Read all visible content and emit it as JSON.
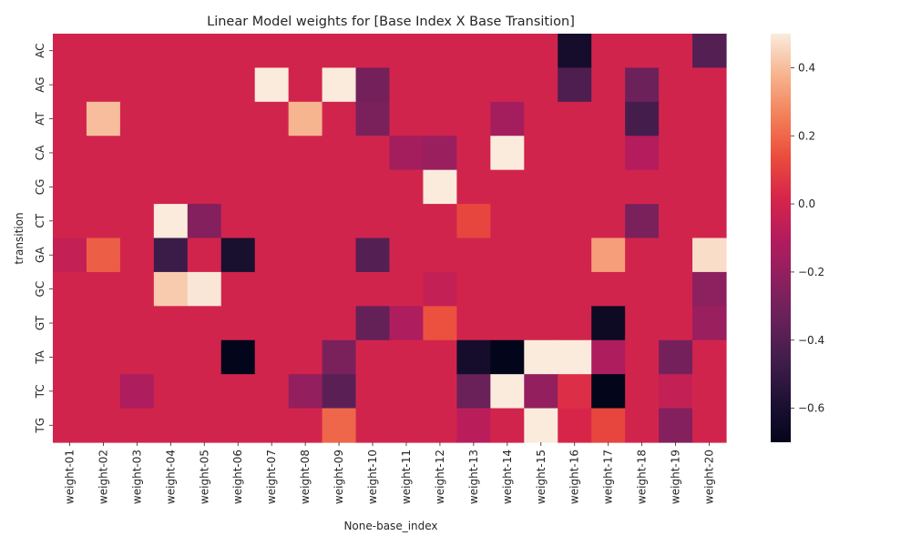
{
  "chart_data": {
    "type": "heatmap",
    "title": "Linear Model weights for [Base Index X Base Transition]",
    "xlabel": "None-base_index",
    "ylabel": "transition",
    "x_categories": [
      "weight-01",
      "weight-02",
      "weight-03",
      "weight-04",
      "weight-05",
      "weight-06",
      "weight-07",
      "weight-08",
      "weight-09",
      "weight-10",
      "weight-11",
      "weight-12",
      "weight-13",
      "weight-14",
      "weight-15",
      "weight-16",
      "weight-17",
      "weight-18",
      "weight-19",
      "weight-20"
    ],
    "y_categories": [
      "AC",
      "AG",
      "AT",
      "CA",
      "CG",
      "CT",
      "GA",
      "GC",
      "GT",
      "TA",
      "TC",
      "TG"
    ],
    "values": [
      [
        0,
        0,
        0,
        0,
        0,
        0,
        0,
        0,
        0,
        0,
        0,
        0,
        0,
        0,
        0,
        -0.62,
        0,
        0,
        0,
        -0.4
      ],
      [
        0,
        0,
        0,
        0,
        0,
        0,
        0.5,
        0,
        0.5,
        -0.3,
        0,
        0,
        0,
        0,
        0,
        -0.42,
        0,
        -0.32,
        0,
        0
      ],
      [
        0,
        0.4,
        0,
        0,
        0,
        0,
        0,
        0.38,
        0,
        -0.28,
        0,
        0,
        0,
        -0.15,
        0,
        0,
        0,
        -0.45,
        0,
        0
      ],
      [
        0,
        0,
        0,
        0,
        0,
        0,
        0,
        0,
        0,
        0,
        -0.15,
        -0.18,
        0,
        0.5,
        0,
        0,
        0,
        -0.1,
        0,
        0
      ],
      [
        0,
        0,
        0,
        0,
        0,
        0,
        0,
        0,
        0,
        0,
        0,
        0.5,
        0,
        0,
        0,
        0,
        0,
        0,
        0,
        0
      ],
      [
        0,
        0,
        0,
        0.5,
        -0.25,
        0,
        0,
        0,
        0,
        0,
        0,
        0,
        0.12,
        0,
        0,
        0,
        0,
        -0.28,
        0,
        0
      ],
      [
        -0.05,
        0.18,
        0,
        -0.48,
        0,
        -0.6,
        0,
        0,
        0,
        -0.4,
        0,
        0,
        0,
        0,
        0,
        0,
        0.33,
        0,
        0,
        0.47
      ],
      [
        0,
        0,
        0,
        0.43,
        0.49,
        0,
        0,
        0,
        0,
        0,
        0,
        -0.05,
        0,
        0,
        0,
        0,
        0,
        0,
        0,
        -0.22
      ],
      [
        0,
        0,
        0,
        0,
        0,
        0,
        0,
        0,
        0,
        -0.35,
        -0.12,
        0.15,
        0,
        0,
        0,
        0,
        -0.65,
        0,
        0,
        -0.18
      ],
      [
        0,
        0,
        0,
        0,
        0,
        -0.7,
        0,
        0,
        -0.28,
        0,
        0,
        0,
        -0.62,
        -0.7,
        0.5,
        0.5,
        -0.12,
        0,
        -0.3,
        0
      ],
      [
        0,
        0,
        -0.12,
        0,
        0,
        0,
        0,
        -0.2,
        -0.38,
        0,
        0,
        0,
        -0.33,
        0.5,
        -0.2,
        0.05,
        -0.7,
        0,
        -0.05,
        0
      ],
      [
        0,
        0,
        0,
        0,
        0,
        0,
        0,
        0,
        0.2,
        0,
        0,
        0,
        -0.08,
        0,
        0.5,
        0.02,
        0.12,
        0,
        -0.25,
        0
      ]
    ],
    "vmin": -0.7,
    "vmax": 0.5,
    "colorbar_ticks": [
      0.4,
      0.2,
      0.0,
      -0.2,
      -0.4,
      -0.6
    ],
    "colorbar_tick_labels": [
      "0.4",
      "0.2",
      "0.0",
      "−0.2",
      "−0.4",
      "−0.6"
    ],
    "colormap": "rocket",
    "grid": false
  }
}
